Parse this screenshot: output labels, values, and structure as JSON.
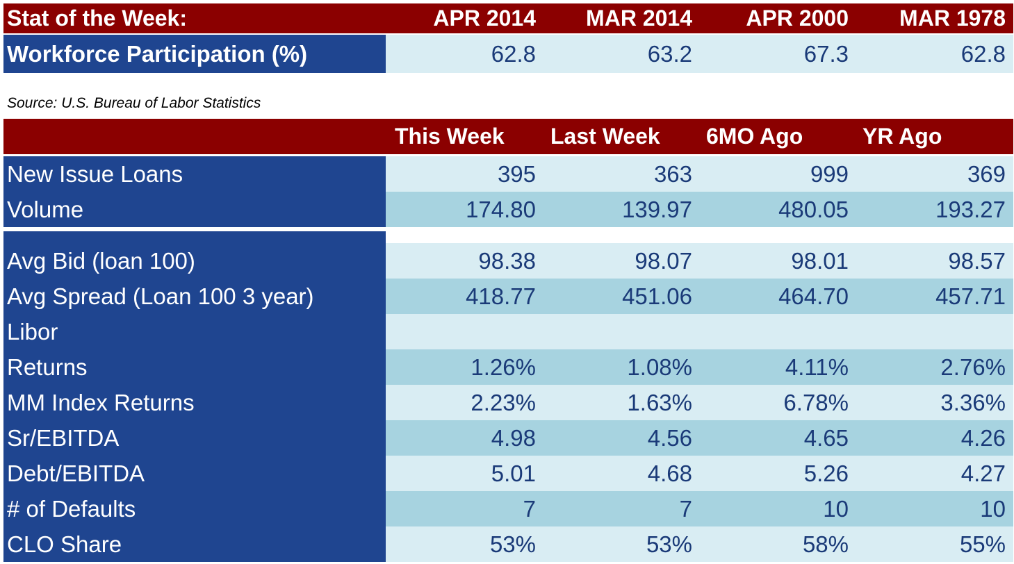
{
  "stat_table": {
    "title": "Stat of the Week:",
    "columns": [
      "APR 2014",
      "MAR 2014",
      "APR 2000",
      "MAR 1978"
    ],
    "row": {
      "label": "Workforce Participation (%)",
      "values": [
        "62.8",
        "63.2",
        "67.3",
        "62.8"
      ]
    }
  },
  "source": "Source: U.S. Bureau of Labor Statistics",
  "main_table": {
    "columns": [
      "This Week",
      "Last Week",
      "6MO Ago",
      "YR Ago"
    ],
    "rows": [
      {
        "label": "New Issue Loans",
        "values": [
          "395",
          "363",
          "999",
          "369"
        ]
      },
      {
        "label": "Volume",
        "values": [
          "174.80",
          "139.97",
          "480.05",
          "193.27"
        ]
      },
      {
        "label": "Avg Bid (loan 100)",
        "values": [
          "98.38",
          "98.07",
          "98.01",
          "98.57"
        ]
      },
      {
        "label": "Avg Spread (Loan 100 3 year)",
        "values": [
          "418.77",
          "451.06",
          "464.70",
          "457.71"
        ]
      },
      {
        "label": "Libor",
        "values": [
          "",
          "",
          "",
          ""
        ]
      },
      {
        "label": "Returns",
        "values": [
          "1.26%",
          "1.08%",
          "4.11%",
          "2.76%"
        ]
      },
      {
        "label": "MM Index Returns",
        "values": [
          "2.23%",
          "1.63%",
          "6.78%",
          "3.36%"
        ]
      },
      {
        "label": "Sr/EBITDA",
        "values": [
          "4.98",
          "4.56",
          "4.65",
          "4.26"
        ]
      },
      {
        "label": "Debt/EBITDA",
        "values": [
          "5.01",
          "4.68",
          "5.26",
          "4.27"
        ]
      },
      {
        "label": "# of Defaults",
        "values": [
          "7",
          "7",
          "10",
          "10"
        ]
      },
      {
        "label": "CLO Share",
        "values": [
          "53%",
          "53%",
          "58%",
          "55%"
        ]
      }
    ]
  },
  "colors": {
    "header_red": "#8b0000",
    "label_navy": "#1f4590",
    "cell_light": "#d9edf3",
    "cell_dark": "#a7d3e0",
    "value_text": "#1a3a78"
  }
}
